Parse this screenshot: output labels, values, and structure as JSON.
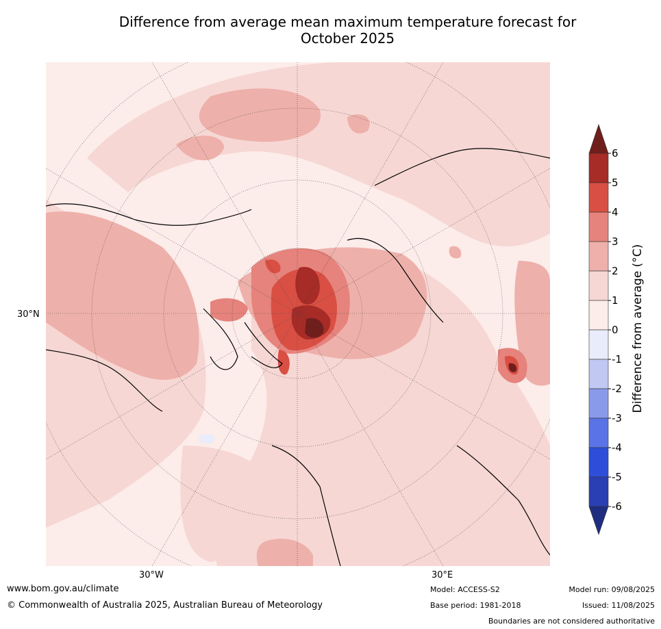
{
  "title": {
    "line1": "Difference from average mean maximum temperature forecast for",
    "line2": "October 2025"
  },
  "axis_labels": {
    "lat_30n": "30°N",
    "lon_30w": "30°W",
    "lon_30e": "30°E"
  },
  "colorbar": {
    "label": "Difference from average (°C)",
    "ticks": [
      "6",
      "5",
      "4",
      "3",
      "2",
      "1",
      "0",
      "-1",
      "-2",
      "-3",
      "-4",
      "-5",
      "-6"
    ],
    "colors": [
      "#701e1c",
      "#a72b26",
      "#d94f44",
      "#e5837c",
      "#eeb0aa",
      "#f6d7d4",
      "#fcecea",
      "#e9ecfa",
      "#c1c8f2",
      "#8a9aeb",
      "#5a73e6",
      "#2e4ed9",
      "#2a3fb3",
      "#1f2d80"
    ]
  },
  "footer": {
    "website": "www.bom.gov.au/climate",
    "copyright": "© Commonwealth of Australia 2025, Australian Bureau of Meteorology",
    "model": "Model: ACCESS-S2",
    "base_period": "Base period: 1981-2018",
    "model_run": "Model run: 09/08/2025",
    "issued": "Issued: 11/08/2025",
    "disclaimer": "Boundaries are not considered authoritative"
  }
}
